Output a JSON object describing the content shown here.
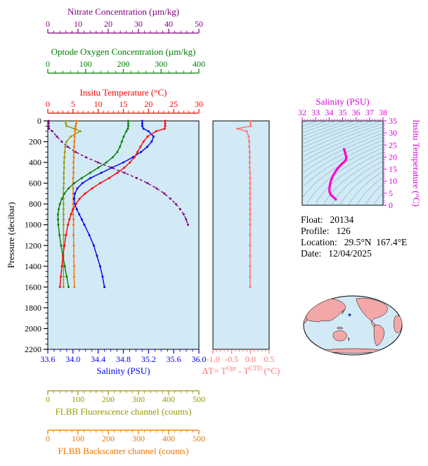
{
  "colors": {
    "nitrate": "#800080",
    "oxygen": "#008000",
    "temperature": "#ff0000",
    "salinity": "#0000ee",
    "fluorescence": "#999900",
    "backscatter": "#ee7600",
    "delta": "#ff7070",
    "ts_line": "#ff00cc",
    "ts_label": "#dd00dd",
    "plot_bg": "#d2e9f6",
    "contour": "#6aa7b8",
    "map_land": "#f4a7a7",
    "map_ocean": "#d2e9f6",
    "marker": "#1133bb",
    "axis_black": "#000000"
  },
  "top_axes": {
    "nitrate": {
      "title": "Nitrate Concentration (µm/kg)",
      "range": [
        0,
        50
      ],
      "tick_labels": [
        "0",
        "10",
        "20",
        "30",
        "40",
        "50"
      ]
    },
    "oxygen": {
      "title": "Optode Oxygen Concentration (µm/kg)",
      "range": [
        0,
        400
      ],
      "tick_labels": [
        "0",
        "100",
        "200",
        "300",
        "400"
      ]
    },
    "temperature": {
      "title": "Insitu Temperature (°C)",
      "range": [
        0,
        30
      ],
      "tick_labels": [
        "0",
        "5",
        "10",
        "15",
        "20",
        "25",
        "30"
      ]
    }
  },
  "main_plot": {
    "ylabel": "Pressure (decibar)",
    "yrange": [
      0,
      2200
    ],
    "ytick_labels": [
      "0",
      "200",
      "400",
      "600",
      "800",
      "1000",
      "1200",
      "1400",
      "1600",
      "1800",
      "2000",
      "2200"
    ],
    "xlabel": "Salinity (PSU)",
    "xrange": [
      33.6,
      36.0
    ],
    "xtick_labels": [
      "33.6",
      "34.0",
      "34.4",
      "34.8",
      "35.2",
      "35.6",
      "36.0"
    ]
  },
  "bottom_axes": {
    "fluorescence": {
      "title": "FLBB Fluorescence channel (counts)",
      "range": [
        0,
        500
      ],
      "tick_labels": [
        "0",
        "100",
        "200",
        "300",
        "400",
        "500"
      ]
    },
    "backscatter": {
      "title": "FLBB Backscatter channel (counts)",
      "range": [
        0,
        500
      ],
      "tick_labels": [
        "0",
        "100",
        "200",
        "300",
        "400",
        "500"
      ]
    }
  },
  "delta_plot": {
    "title_parts": {
      "p1": "ΔT= T",
      "sup1": "Opt",
      "p2": " - T",
      "sup2": "CTD",
      "p3": " (°C)"
    },
    "xrange": [
      -1.0,
      0.5
    ],
    "tick_labels": [
      "-1.0",
      "-0.5",
      "0.0",
      "0.5"
    ]
  },
  "ts_plot": {
    "top_title": "Salinity (PSU)",
    "right_title": "Insitu Temperature (°C)",
    "xrange": [
      32,
      38
    ],
    "xtick_labels": [
      "32",
      "33",
      "34",
      "35",
      "36",
      "37",
      "38"
    ],
    "yrange": [
      0,
      35
    ],
    "ytick_labels": [
      "0",
      "5",
      "10",
      "15",
      "20",
      "25",
      "30",
      "35"
    ]
  },
  "info": {
    "float_label": "Float:",
    "float_value": "20134",
    "profile_label": "Profile:",
    "profile_value": "126",
    "location_label": "Location:",
    "location_value": "29.5°N  167.4°E",
    "date_label": "Date:",
    "date_value": "12/04/2025"
  },
  "chart_data": {
    "type": "line",
    "pressure_db": [
      0,
      25,
      50,
      75,
      100,
      150,
      200,
      250,
      300,
      350,
      400,
      450,
      500,
      550,
      600,
      650,
      700,
      750,
      800,
      850,
      900,
      950,
      1000,
      1100,
      1200,
      1300,
      1400,
      1500,
      1600
    ],
    "series": [
      {
        "name": "Nitrate Concentration (µm/kg)",
        "color_key": "nitrate",
        "x_range": [
          0,
          50
        ],
        "dash": "4,3",
        "values": [
          0.3,
          0.3,
          0.3,
          0.4,
          1.5,
          3.0,
          4.6,
          6.6,
          9.2,
          12.6,
          16.6,
          21.0,
          25.4,
          29.4,
          33.0,
          36.0,
          38.6,
          40.6,
          42.4,
          43.8,
          45.0,
          45.8,
          46.4,
          null,
          null,
          null,
          null,
          null,
          null
        ]
      },
      {
        "name": "FLBB Fluorescence channel (counts)",
        "color_key": "fluorescence",
        "x_range": [
          0,
          500
        ],
        "values": [
          60,
          60,
          62,
          88,
          108,
          76,
          62,
          58,
          56,
          55,
          54,
          54,
          53,
          53,
          53,
          52,
          52,
          52,
          52,
          52,
          52,
          52,
          52,
          52,
          52,
          52,
          52,
          52,
          52
        ]
      },
      {
        "name": "FLBB Backscatter channel (counts)",
        "color_key": "backscatter",
        "x_range": [
          0,
          500
        ],
        "values": [
          96,
          94,
          92,
          92,
          90,
          89,
          88,
          87,
          86,
          86,
          85,
          85,
          85,
          84,
          84,
          84,
          84,
          84,
          84,
          84,
          84,
          85,
          85,
          85,
          86,
          86,
          87,
          87,
          88
        ]
      },
      {
        "name": "Optode Oxygen Concentration (µm/kg)",
        "color_key": "oxygen",
        "x_range": [
          0,
          400
        ],
        "values": [
          213,
          213,
          213,
          212,
          208,
          201,
          196,
          191,
          184,
          172,
          155,
          134,
          112,
          90,
          70,
          55,
          44,
          37,
          32,
          29,
          27,
          27,
          28,
          31,
          35,
          40,
          45,
          50,
          55
        ]
      },
      {
        "name": "Salinity (PSU)",
        "color_key": "salinity",
        "x_range": [
          33.6,
          36.0
        ],
        "values": [
          35.1,
          35.1,
          35.1,
          35.12,
          35.2,
          35.28,
          35.25,
          35.18,
          35.08,
          34.95,
          34.8,
          34.62,
          34.45,
          34.28,
          34.15,
          34.07,
          34.03,
          34.02,
          34.03,
          34.06,
          34.1,
          34.14,
          34.18,
          34.26,
          34.33,
          34.38,
          34.43,
          34.47,
          34.5
        ]
      },
      {
        "name": "Insitu Temperature (°C)",
        "color_key": "temperature",
        "x_range": [
          0,
          30
        ],
        "values": [
          23.3,
          23.3,
          23.3,
          23.2,
          21.5,
          19.8,
          19.0,
          18.4,
          17.8,
          17.2,
          16.3,
          15.2,
          13.8,
          12.2,
          10.4,
          8.8,
          7.4,
          6.3,
          5.6,
          5.0,
          4.6,
          4.3,
          4.0,
          3.6,
          3.3,
          3.0,
          2.8,
          2.6,
          2.4
        ]
      }
    ],
    "delta_temperature": {
      "name": "ΔT = T Opt - T CTD (°C)",
      "x_range": [
        -1.0,
        0.5
      ],
      "values": [
        0.0,
        0.0,
        0.01,
        -0.35,
        -0.1,
        -0.05,
        -0.03,
        -0.03,
        -0.02,
        -0.02,
        -0.02,
        -0.02,
        -0.01,
        -0.01,
        -0.01,
        -0.01,
        -0.01,
        -0.01,
        -0.01,
        -0.01,
        -0.01,
        -0.01,
        -0.01,
        -0.01,
        -0.01,
        -0.01,
        -0.01,
        -0.01,
        -0.01
      ]
    },
    "ts_diagram": {
      "x": "salinity",
      "y": "temperature",
      "isopycnal_levels": [
        18,
        18.5,
        19,
        19.5,
        20,
        20.5,
        21,
        21.5,
        22,
        22.5,
        23,
        23.5,
        24,
        24.5,
        25,
        25.5,
        26,
        26.5,
        27,
        27.5,
        28,
        28.5,
        29,
        29.5,
        30
      ]
    }
  }
}
